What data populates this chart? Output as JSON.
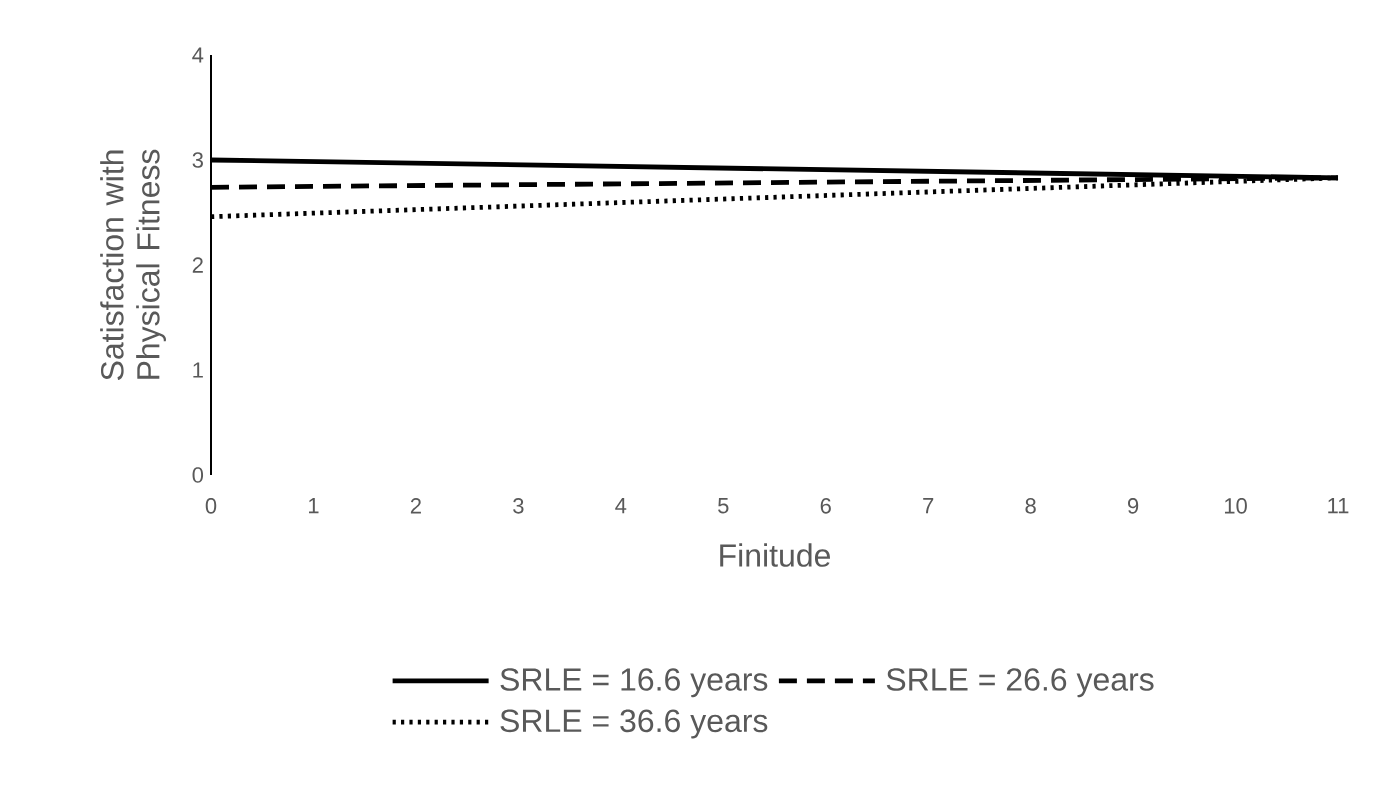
{
  "chart_data": {
    "type": "line",
    "xlabel": "Finitude",
    "ylabel": "Satisfaction with Physical Fitness",
    "xlim": [
      0,
      11
    ],
    "ylim": [
      0,
      4
    ],
    "xticks": [
      0,
      1,
      2,
      3,
      4,
      5,
      6,
      7,
      8,
      9,
      10,
      11
    ],
    "yticks": [
      0,
      1,
      2,
      3,
      4
    ],
    "legend": "bottom",
    "x": [
      0,
      11
    ],
    "series": [
      {
        "name": "SRLE = 16.6 years",
        "color": "#000000",
        "line_style": "solid",
        "values": [
          3.0,
          2.83
        ]
      },
      {
        "name": "SRLE = 26.6 years",
        "color": "#000000",
        "line_style": "dashed",
        "values": [
          2.74,
          2.83
        ]
      },
      {
        "name": "SRLE = 36.6 years",
        "color": "#000000",
        "line_style": "dotted",
        "values": [
          2.46,
          2.83
        ]
      }
    ]
  }
}
